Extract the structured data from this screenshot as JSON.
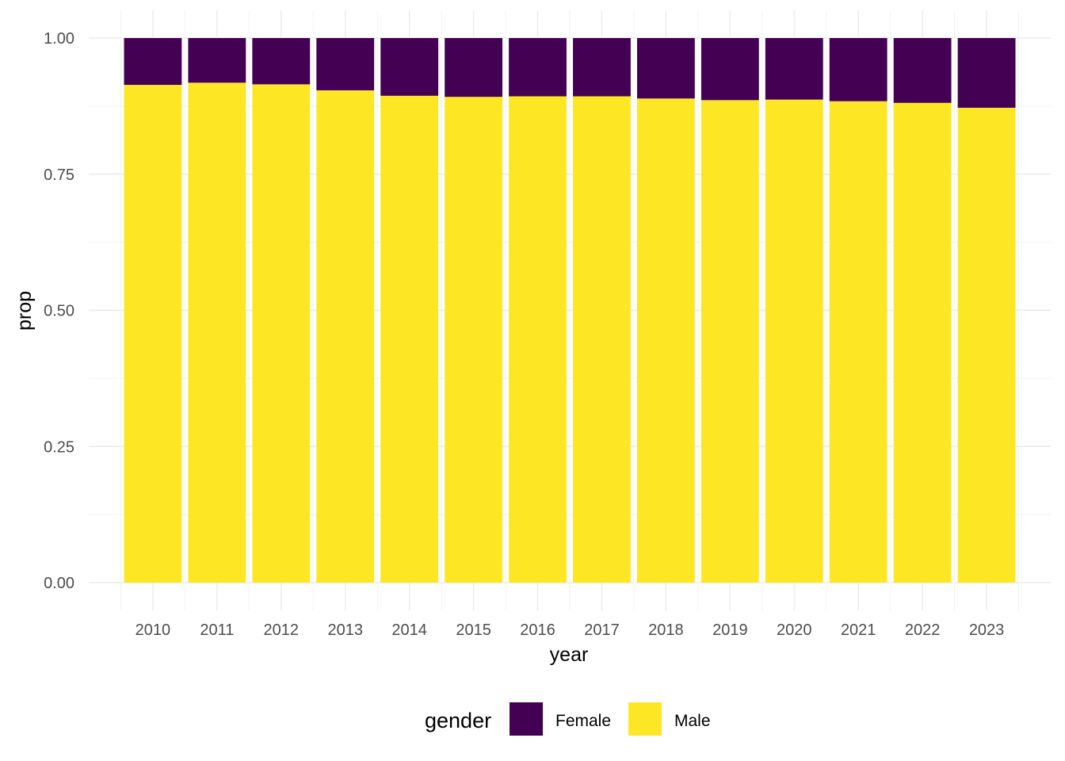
{
  "chart_data": {
    "type": "bar",
    "stacked": true,
    "title": "",
    "xlabel": "year",
    "ylabel": "prop",
    "ylim": [
      0,
      1
    ],
    "yticks": [
      "0.00",
      "0.25",
      "0.50",
      "0.75",
      "1.00"
    ],
    "grid": true,
    "legend_position": "bottom",
    "legend_title": "gender",
    "categories": [
      "2010",
      "2011",
      "2012",
      "2013",
      "2014",
      "2015",
      "2016",
      "2017",
      "2018",
      "2019",
      "2020",
      "2021",
      "2022",
      "2023"
    ],
    "series": [
      {
        "name": "Male",
        "color": "#FDE725",
        "values": [
          0.914,
          0.918,
          0.915,
          0.904,
          0.894,
          0.892,
          0.893,
          0.893,
          0.889,
          0.886,
          0.887,
          0.884,
          0.881,
          0.872
        ]
      },
      {
        "name": "Female",
        "color": "#440154",
        "values": [
          0.086,
          0.082,
          0.085,
          0.096,
          0.106,
          0.108,
          0.107,
          0.107,
          0.111,
          0.114,
          0.113,
          0.116,
          0.119,
          0.128
        ]
      }
    ],
    "legend_order": [
      "Female",
      "Male"
    ]
  }
}
